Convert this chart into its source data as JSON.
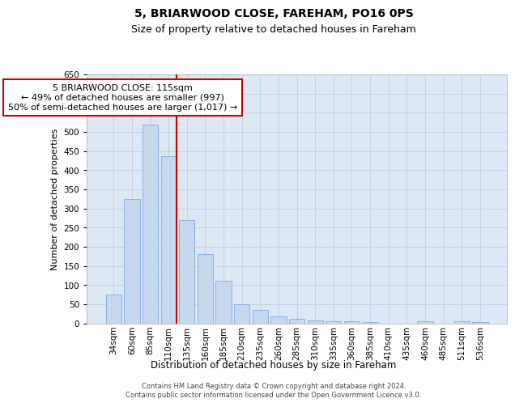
{
  "title": "5, BRIARWOOD CLOSE, FAREHAM, PO16 0PS",
  "subtitle": "Size of property relative to detached houses in Fareham",
  "xlabel": "Distribution of detached houses by size in Fareham",
  "ylabel": "Number of detached properties",
  "categories": [
    "34sqm",
    "60sqm",
    "85sqm",
    "110sqm",
    "135sqm",
    "160sqm",
    "185sqm",
    "210sqm",
    "235sqm",
    "260sqm",
    "285sqm",
    "310sqm",
    "335sqm",
    "360sqm",
    "385sqm",
    "410sqm",
    "435sqm",
    "460sqm",
    "485sqm",
    "511sqm",
    "536sqm"
  ],
  "values": [
    75,
    325,
    520,
    437,
    270,
    180,
    112,
    50,
    35,
    17,
    12,
    8,
    5,
    5,
    4,
    0,
    0,
    5,
    0,
    5,
    4
  ],
  "bar_color": "#c5d8ee",
  "bar_edge_color": "#7aabe0",
  "vline_color": "#cc0000",
  "vline_x": 3.425,
  "annotation_line1": "5 BRIARWOOD CLOSE: 115sqm",
  "annotation_line2": "← 49% of detached houses are smaller (997)",
  "annotation_line3": "50% of semi-detached houses are larger (1,017) →",
  "annotation_box_color": "#ffffff",
  "annotation_box_edge": "#cc0000",
  "ylim_max": 650,
  "yticks": [
    0,
    50,
    100,
    150,
    200,
    250,
    300,
    350,
    400,
    450,
    500,
    550,
    600,
    650
  ],
  "bg_color": "#dde8f5",
  "grid_color": "#b8c8de",
  "footer1": "Contains HM Land Registry data © Crown copyright and database right 2024.",
  "footer2": "Contains public sector information licensed under the Open Government Licence v3.0.",
  "title_fontsize": 10,
  "subtitle_fontsize": 9,
  "ylabel_fontsize": 8,
  "xlabel_fontsize": 8.5,
  "tick_fontsize": 7.5,
  "annot_fontsize": 8,
  "footer_fontsize": 6
}
